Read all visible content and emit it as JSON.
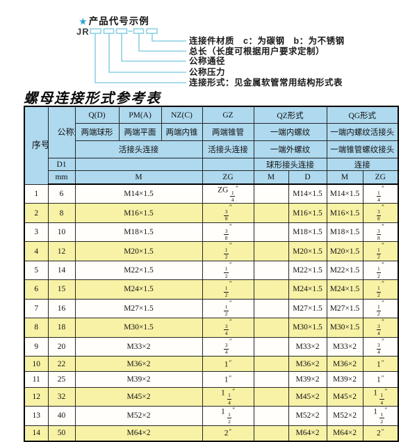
{
  "colors": {
    "header_bg": "#aed9ef",
    "row_alt": "#f8f2a6",
    "line": "#8ad0e4",
    "star": "#2ba3d4"
  },
  "diagram": {
    "star": "★",
    "title": "产品代号示例",
    "code_prefix": "JR",
    "labels": [
      "连接件材质　c：为碳钢　b：为不锈钢",
      "总长（长度可根据用户要求定制）",
      "公称通径",
      "公称压力",
      "连接形式：见金属软管常用结构形式表"
    ]
  },
  "table": {
    "title": "螺母连接形式参考表",
    "header": {
      "xuhao": "序号",
      "gongcheng": "公称通径",
      "d1": "D1",
      "mm": "mm",
      "q": "Q(D)",
      "q_desc": "两端球形",
      "pm": "PM(A)",
      "pm_desc": "两端平面",
      "nz": "NZ(C)",
      "nz_desc": "两端内锥",
      "gz": "GZ",
      "gz_desc": "两端锥管",
      "qz": "QZ形式",
      "qz_row2": "一端内螺纹",
      "qz_row3": "一端外螺纹",
      "qz_row4": "球形接头连接",
      "qg": "QG形式",
      "qg_row2": "一端内螺纹活接头",
      "qg_row3": "一端锥管螺纹接头",
      "qg_row4": "连接",
      "union_joint": "活接头连接",
      "m": "M",
      "zg": "ZG",
      "d": "D"
    },
    "rows": [
      {
        "no": "1",
        "mm": "6",
        "m": "M14×1.5",
        "zg": "ZG 1/4″",
        "qz_m": "",
        "qz_d": "M14×1.5",
        "qg_m": "M14×1.5",
        "qg_zg": "1/4″"
      },
      {
        "no": "2",
        "mm": "8",
        "m": "M16×1.5",
        "zg": "3/8″",
        "qz_m": "",
        "qz_d": "M16×1.5",
        "qg_m": "M16×1.5",
        "qg_zg": "3/8″"
      },
      {
        "no": "3",
        "mm": "10",
        "m": "M18×1.5",
        "zg": "3/8″",
        "qz_m": "",
        "qz_d": "M18×1.5",
        "qg_m": "M18×1.5",
        "qg_zg": "3/8″"
      },
      {
        "no": "4",
        "mm": "12",
        "m": "M20×1.5",
        "zg": "1/2″",
        "qz_m": "",
        "qz_d": "M20×1.5",
        "qg_m": "M20×1.5",
        "qg_zg": "1/2″"
      },
      {
        "no": "5",
        "mm": "14",
        "m": "M22×1.5",
        "zg": "1/2″",
        "qz_m": "",
        "qz_d": "M22×1.5",
        "qg_m": "M22×1.5",
        "qg_zg": "1/2″"
      },
      {
        "no": "6",
        "mm": "15",
        "m": "M24×1.5",
        "zg": "1/2″",
        "qz_m": "",
        "qz_d": "M24×1.5",
        "qg_m": "M24×1.5",
        "qg_zg": "1/2″"
      },
      {
        "no": "7",
        "mm": "16",
        "m": "M27×1.5",
        "zg": "1/2″",
        "qz_m": "",
        "qz_d": "M27×1.5",
        "qg_m": "M27×1.5",
        "qg_zg": "1/2″"
      },
      {
        "no": "8",
        "mm": "18",
        "m": "M30×1.5",
        "zg": "3/4″",
        "qz_m": "",
        "qz_d": "M30×1.5",
        "qg_m": "M30×1.5",
        "qg_zg": "3/4″"
      },
      {
        "no": "9",
        "mm": "20",
        "m": "M33×2",
        "zg": "3/4″",
        "qz_m": "",
        "qz_d": "M33×2",
        "qg_m": "M33×2",
        "qg_zg": "3/4″"
      },
      {
        "no": "10",
        "mm": "22",
        "m": "M36×2",
        "zg": "1″",
        "qz_m": "",
        "qz_d": "M36×2",
        "qg_m": "M36×2",
        "qg_zg": "1″"
      },
      {
        "no": "11",
        "mm": "25",
        "m": "M39×2",
        "zg": "1″",
        "qz_m": "",
        "qz_d": "M39×2",
        "qg_m": "M39×2",
        "qg_zg": "1″"
      },
      {
        "no": "12",
        "mm": "32",
        "m": "M45×2",
        "zg": "1 1/4″",
        "qz_m": "",
        "qz_d": "M45×2",
        "qg_m": "M45×2",
        "qg_zg": "1 1/4″"
      },
      {
        "no": "13",
        "mm": "40",
        "m": "M52×2",
        "zg": "1 1/2″",
        "qz_m": "",
        "qz_d": "M52×2",
        "qg_m": "M52×2",
        "qg_zg": "1 1/2″"
      },
      {
        "no": "14",
        "mm": "50",
        "m": "M64×2",
        "zg": "2″",
        "qz_m": "",
        "qz_d": "M64×2",
        "qg_m": "M64×2",
        "qg_zg": "2″"
      }
    ]
  }
}
